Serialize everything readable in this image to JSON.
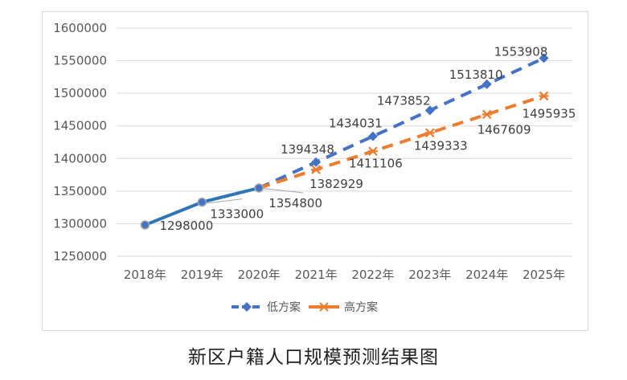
{
  "caption": "新区户籍人口规模预测结果图",
  "chart_data": {
    "type": "line",
    "title": "",
    "xlabel": "",
    "ylabel": "",
    "categories": [
      "2018年",
      "2019年",
      "2020年",
      "2021年",
      "2022年",
      "2023年",
      "2024年",
      "2025年"
    ],
    "ylim": [
      1250000,
      1600000
    ],
    "yticks": [
      1250000,
      1300000,
      1350000,
      1400000,
      1450000,
      1500000,
      1550000,
      1600000
    ],
    "grid": true,
    "legend": "bottom",
    "historical": {
      "values": [
        1298000,
        1333000,
        1354800
      ],
      "labels": [
        "1298000",
        "1333000",
        "1354800"
      ],
      "color": "#2e75b6"
    },
    "series": [
      {
        "name": "低方案",
        "color": "#4472c4",
        "marker": "diamond",
        "style": "dashed",
        "values": [
          null,
          null,
          1354800,
          1394348,
          1434031,
          1473852,
          1513810,
          1553908
        ],
        "labels": [
          "",
          "",
          "",
          "1394348",
          "1434031",
          "1473852",
          "1513810",
          "1553908"
        ]
      },
      {
        "name": "高方案",
        "color": "#ed7d31",
        "marker": "x",
        "style": "dashed",
        "values": [
          null,
          null,
          1354800,
          1382929,
          1411106,
          1439333,
          1467609,
          1495935
        ],
        "labels": [
          "",
          "",
          "",
          "1382929",
          "1411106",
          "1439333",
          "1467609",
          "1495935"
        ]
      }
    ]
  }
}
